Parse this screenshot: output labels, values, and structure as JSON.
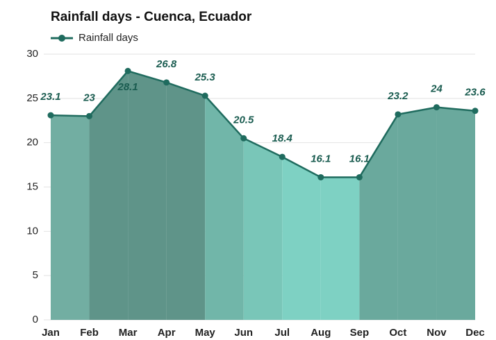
{
  "chart_data": {
    "type": "area",
    "title": "Rainfall days - Cuenca, Ecuador",
    "categories": [
      "Jan",
      "Feb",
      "Mar",
      "Apr",
      "May",
      "Jun",
      "Jul",
      "Aug",
      "Sep",
      "Oct",
      "Nov",
      "Dec"
    ],
    "series": [
      {
        "name": "Rainfall days",
        "color": "#1f6b5e",
        "values": [
          23.1,
          23,
          28.1,
          26.8,
          25.3,
          20.5,
          18.4,
          16.1,
          16.1,
          23.2,
          24,
          23.6
        ]
      }
    ],
    "area_colors": [
      "#72ae a2",
      "#5f9489",
      "#5f9489",
      "#5f9489",
      "#71b6a9",
      "#79c6b8",
      "#7ed1c3",
      "#7ed1c3",
      "#6aa99d",
      "#6aa99d",
      "#6aa99d"
    ],
    "ylim": [
      0,
      30
    ],
    "yticks": [
      0,
      5,
      10,
      15,
      20,
      25,
      30
    ],
    "grid": true,
    "legend": "top-left"
  }
}
